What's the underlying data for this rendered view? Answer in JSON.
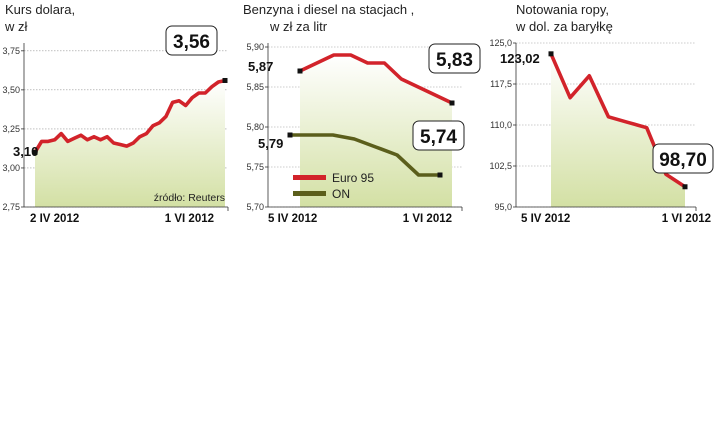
{
  "chart_data": [
    {
      "type": "line",
      "title_lines": [
        "Kurs dolara,",
        "w zł"
      ],
      "yticks": [
        "3,75",
        "3,50",
        "3,25",
        "3,00",
        "2,75"
      ],
      "ylim": [
        2.75,
        3.8
      ],
      "x_start_label": "2 IV 2012",
      "x_end_label": "1 VI 2012",
      "source": "źródło: Reuters",
      "series": [
        {
          "color": "#d2232a",
          "values": [
            3.1,
            3.17,
            3.17,
            3.18,
            3.22,
            3.17,
            3.19,
            3.21,
            3.18,
            3.2,
            3.18,
            3.2,
            3.16,
            3.15,
            3.14,
            3.16,
            3.2,
            3.22,
            3.27,
            3.29,
            3.33,
            3.42,
            3.43,
            3.4,
            3.45,
            3.48,
            3.48,
            3.52,
            3.55,
            3.56
          ],
          "start_label": "3,10",
          "end_label": "3,56"
        }
      ]
    },
    {
      "type": "line",
      "title_lines": [
        "Benzyna i diesel na stacjach ,",
        "w zł za litr"
      ],
      "yticks": [
        "5,90",
        "5,85",
        "5,80",
        "5,75",
        "5,70"
      ],
      "ylim": [
        5.7,
        5.905
      ],
      "x_start_label": "5 IV 2012",
      "x_end_label": "1 VI 2012",
      "series": [
        {
          "name": "Euro 95",
          "color": "#d2232a",
          "values": [
            5.87,
            5.88,
            5.89,
            5.89,
            5.88,
            5.88,
            5.86,
            5.85,
            5.84,
            5.83
          ],
          "start_label": "5,87",
          "end_label": "5,83"
        },
        {
          "name": "ON",
          "color": "#5b5e1b",
          "values": [
            5.79,
            5.79,
            5.79,
            5.785,
            5.775,
            5.765,
            5.74,
            5.74
          ],
          "start_label": "5,79",
          "end_label": "5,74"
        }
      ]
    },
    {
      "type": "line",
      "title_lines": [
        "Notowania ropy,",
        "w dol. za baryłkę"
      ],
      "yticks": [
        "125,0",
        "117,5",
        "110,0",
        "102,5",
        "95,0"
      ],
      "ylim": [
        95.0,
        125.0
      ],
      "x_start_label": "5 IV 2012",
      "x_end_label": "1 VI 2012",
      "series": [
        {
          "color": "#d2232a",
          "values": [
            123.02,
            115.0,
            119.0,
            111.5,
            110.5,
            109.5,
            101.0,
            98.7
          ],
          "start_label": "123,02",
          "end_label": "98,70"
        }
      ]
    }
  ]
}
